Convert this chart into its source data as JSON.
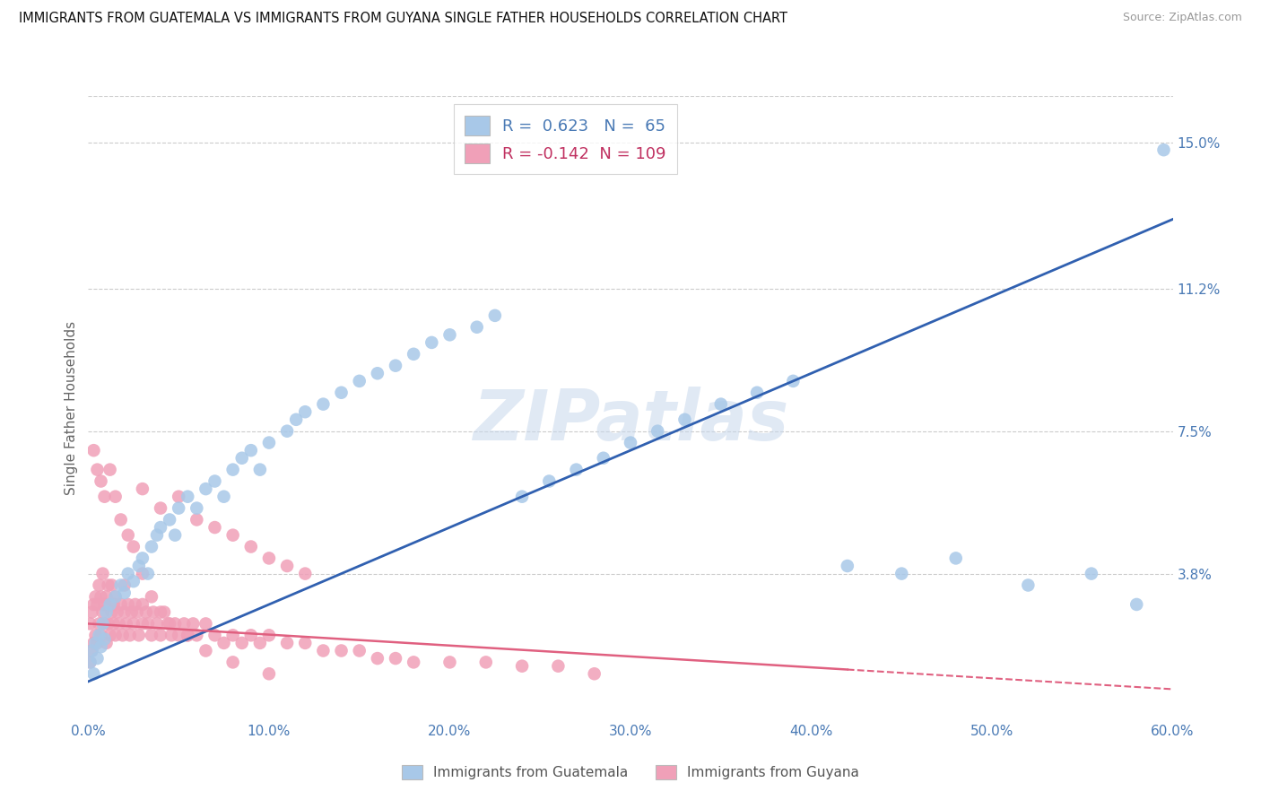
{
  "title": "IMMIGRANTS FROM GUATEMALA VS IMMIGRANTS FROM GUYANA SINGLE FATHER HOUSEHOLDS CORRELATION CHART",
  "source": "Source: ZipAtlas.com",
  "ylabel": "Single Father Households",
  "legend_label1": "Immigrants from Guatemala",
  "legend_label2": "Immigrants from Guyana",
  "r1": 0.623,
  "n1": 65,
  "r2": -0.142,
  "n2": 109,
  "color1": "#a8c8e8",
  "color2": "#f0a0b8",
  "line_color1": "#3060b0",
  "line_color2": "#e06080",
  "xmin": 0.0,
  "xmax": 0.6,
  "ymin": 0.0,
  "ymax": 0.162,
  "right_yticks": [
    0.038,
    0.075,
    0.112,
    0.15
  ],
  "right_yticklabels": [
    "3.8%",
    "7.5%",
    "11.2%",
    "15.0%"
  ],
  "watermark": "ZIPatlas",
  "title_color": "#222222",
  "axis_color": "#4a7ab5",
  "legend_r_color1": "#4a7ab5",
  "legend_r_color2": "#c03060",
  "blue_line_x0": 0.0,
  "blue_line_y0": 0.01,
  "blue_line_x1": 0.6,
  "blue_line_y1": 0.13,
  "pink_line_x0": 0.0,
  "pink_line_y0": 0.025,
  "pink_line_x1": 0.6,
  "pink_line_y1": 0.008,
  "guatemala_x": [
    0.001,
    0.002,
    0.003,
    0.004,
    0.005,
    0.006,
    0.007,
    0.008,
    0.009,
    0.01,
    0.012,
    0.015,
    0.018,
    0.02,
    0.022,
    0.025,
    0.028,
    0.03,
    0.033,
    0.035,
    0.038,
    0.04,
    0.045,
    0.048,
    0.05,
    0.055,
    0.06,
    0.065,
    0.07,
    0.075,
    0.08,
    0.085,
    0.09,
    0.095,
    0.1,
    0.11,
    0.115,
    0.12,
    0.13,
    0.14,
    0.15,
    0.16,
    0.17,
    0.18,
    0.19,
    0.2,
    0.215,
    0.225,
    0.24,
    0.255,
    0.27,
    0.285,
    0.3,
    0.315,
    0.33,
    0.35,
    0.37,
    0.39,
    0.42,
    0.45,
    0.48,
    0.52,
    0.555,
    0.58,
    0.595
  ],
  "guatemala_y": [
    0.015,
    0.018,
    0.012,
    0.02,
    0.016,
    0.022,
    0.019,
    0.025,
    0.021,
    0.028,
    0.03,
    0.032,
    0.035,
    0.033,
    0.038,
    0.036,
    0.04,
    0.042,
    0.038,
    0.045,
    0.048,
    0.05,
    0.052,
    0.048,
    0.055,
    0.058,
    0.055,
    0.06,
    0.062,
    0.058,
    0.065,
    0.068,
    0.07,
    0.065,
    0.072,
    0.075,
    0.078,
    0.08,
    0.082,
    0.085,
    0.088,
    0.09,
    0.092,
    0.095,
    0.098,
    0.1,
    0.102,
    0.105,
    0.058,
    0.062,
    0.065,
    0.068,
    0.072,
    0.075,
    0.078,
    0.082,
    0.085,
    0.088,
    0.04,
    0.038,
    0.042,
    0.035,
    0.038,
    0.03,
    0.148
  ],
  "guyana_x": [
    0.001,
    0.001,
    0.002,
    0.002,
    0.003,
    0.003,
    0.004,
    0.004,
    0.005,
    0.005,
    0.006,
    0.006,
    0.007,
    0.007,
    0.008,
    0.008,
    0.009,
    0.009,
    0.01,
    0.01,
    0.011,
    0.011,
    0.012,
    0.012,
    0.013,
    0.013,
    0.014,
    0.014,
    0.015,
    0.015,
    0.016,
    0.017,
    0.018,
    0.019,
    0.02,
    0.02,
    0.021,
    0.022,
    0.023,
    0.024,
    0.025,
    0.026,
    0.027,
    0.028,
    0.03,
    0.03,
    0.032,
    0.033,
    0.035,
    0.036,
    0.038,
    0.04,
    0.042,
    0.044,
    0.046,
    0.048,
    0.05,
    0.053,
    0.055,
    0.058,
    0.06,
    0.065,
    0.07,
    0.075,
    0.08,
    0.085,
    0.09,
    0.095,
    0.1,
    0.11,
    0.12,
    0.13,
    0.14,
    0.15,
    0.16,
    0.17,
    0.18,
    0.2,
    0.22,
    0.24,
    0.26,
    0.28,
    0.03,
    0.04,
    0.05,
    0.06,
    0.07,
    0.08,
    0.09,
    0.1,
    0.11,
    0.12,
    0.003,
    0.005,
    0.007,
    0.009,
    0.012,
    0.015,
    0.018,
    0.022,
    0.025,
    0.03,
    0.035,
    0.04,
    0.045,
    0.055,
    0.065,
    0.08,
    0.1
  ],
  "guyana_y": [
    0.015,
    0.025,
    0.018,
    0.028,
    0.02,
    0.03,
    0.022,
    0.032,
    0.02,
    0.03,
    0.025,
    0.035,
    0.022,
    0.032,
    0.028,
    0.038,
    0.025,
    0.03,
    0.02,
    0.032,
    0.025,
    0.035,
    0.022,
    0.03,
    0.028,
    0.035,
    0.025,
    0.03,
    0.022,
    0.032,
    0.028,
    0.025,
    0.03,
    0.022,
    0.028,
    0.035,
    0.025,
    0.03,
    0.022,
    0.028,
    0.025,
    0.03,
    0.028,
    0.022,
    0.025,
    0.03,
    0.028,
    0.025,
    0.022,
    0.028,
    0.025,
    0.022,
    0.028,
    0.025,
    0.022,
    0.025,
    0.022,
    0.025,
    0.022,
    0.025,
    0.022,
    0.025,
    0.022,
    0.02,
    0.022,
    0.02,
    0.022,
    0.02,
    0.022,
    0.02,
    0.02,
    0.018,
    0.018,
    0.018,
    0.016,
    0.016,
    0.015,
    0.015,
    0.015,
    0.014,
    0.014,
    0.012,
    0.06,
    0.055,
    0.058,
    0.052,
    0.05,
    0.048,
    0.045,
    0.042,
    0.04,
    0.038,
    0.07,
    0.065,
    0.062,
    0.058,
    0.065,
    0.058,
    0.052,
    0.048,
    0.045,
    0.038,
    0.032,
    0.028,
    0.025,
    0.022,
    0.018,
    0.015,
    0.012
  ]
}
